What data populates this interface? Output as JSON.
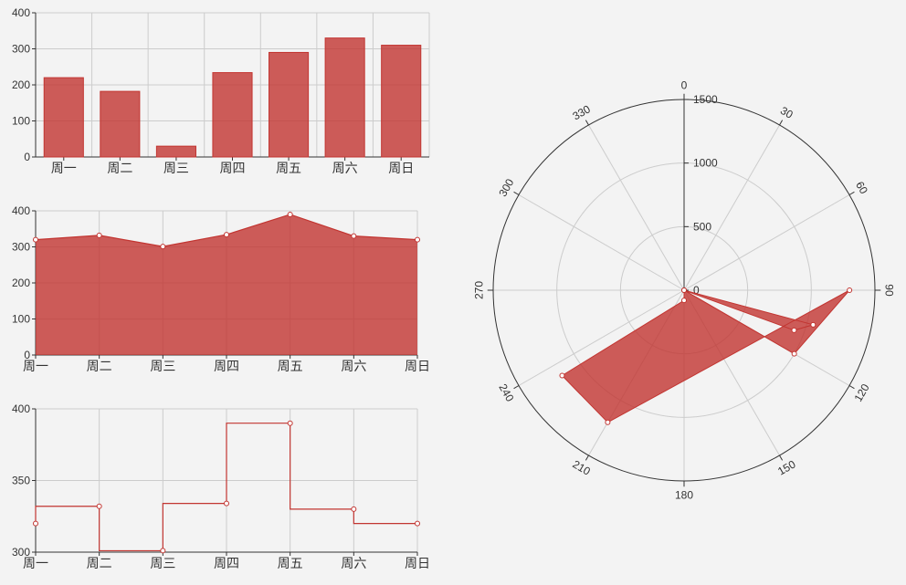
{
  "colors": {
    "series": "#c23531",
    "grid": "#cccccc",
    "axis": "#333333",
    "background": "#f3f3f3"
  },
  "chart_data": [
    {
      "type": "bar",
      "categories": [
        "周一",
        "周二",
        "周三",
        "周四",
        "周五",
        "周六",
        "周日"
      ],
      "values": [
        220,
        182,
        30,
        234,
        290,
        330,
        310
      ],
      "ylim": [
        0,
        400
      ],
      "yticks": [
        0,
        100,
        200,
        300,
        400
      ],
      "grid": true
    },
    {
      "type": "area",
      "categories": [
        "周一",
        "周二",
        "周三",
        "周四",
        "周五",
        "周六",
        "周日"
      ],
      "values": [
        320,
        332,
        301,
        334,
        390,
        330,
        320
      ],
      "ylim": [
        0,
        400
      ],
      "yticks": [
        0,
        100,
        200,
        300,
        400
      ],
      "grid": true
    },
    {
      "type": "line",
      "step": "start",
      "categories": [
        "周一",
        "周二",
        "周三",
        "周四",
        "周五",
        "周六",
        "周日"
      ],
      "values": [
        320,
        332,
        301,
        334,
        390,
        330,
        320
      ],
      "ylim": [
        300,
        400
      ],
      "yticks": [
        300,
        350,
        400
      ],
      "grid": true
    },
    {
      "type": "polar-area",
      "points": [
        {
          "angle": 0,
          "radius": 0
        },
        {
          "angle": 120,
          "radius": 1000
        },
        {
          "angle": 90,
          "radius": 1300
        },
        {
          "angle": 210,
          "radius": 1200
        },
        {
          "angle": 235,
          "radius": 1170
        },
        {
          "angle": 180,
          "radius": 80
        },
        {
          "angle": 0,
          "radius": 0
        },
        {
          "angle": 110,
          "radius": 920
        },
        {
          "angle": 105,
          "radius": 1050
        }
      ],
      "radius_range": [
        0,
        1500
      ],
      "radius_ticks": [
        "0",
        "500",
        "1000",
        "1500"
      ],
      "angle_ticks": [
        "0",
        "30",
        "60",
        "90",
        "120",
        "150",
        "180",
        "210",
        "240",
        "270",
        "300",
        "330"
      ],
      "grid": true
    }
  ]
}
